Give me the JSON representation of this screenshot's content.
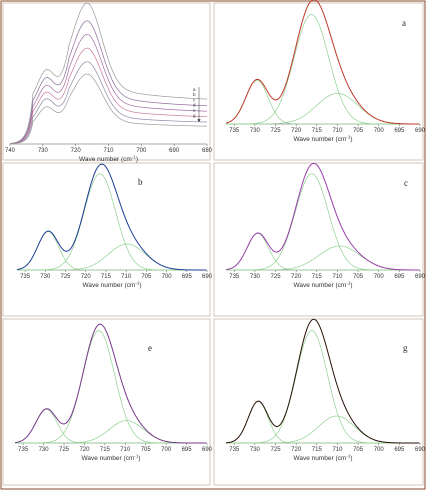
{
  "chart_data": [
    {
      "type": "line",
      "panel_label": "",
      "xlabel": "Wave number (cm",
      "xlabel_sup": "-1",
      "xlabel_tail": ")",
      "ylabel": "",
      "xlim": [
        740,
        680
      ],
      "ylim": [
        0,
        1.05
      ],
      "x_ticks": [
        740,
        730,
        720,
        710,
        700,
        690,
        680
      ],
      "stack_labels": [
        "a",
        "b",
        "c",
        "d",
        "e",
        "g"
      ],
      "arrow": true,
      "peaks": [
        {
          "center": 729,
          "width": 2.5
        },
        {
          "center": 716.5,
          "width": 4.5
        }
      ],
      "series": [
        {
          "name": "a",
          "color": "#9a9a9a",
          "offset": 0.33,
          "heights": [
            0.23,
            0.62
          ],
          "decay": 0.09
        },
        {
          "name": "b",
          "color": "#8a6a9a",
          "offset": 0.28,
          "heights": [
            0.22,
            0.55
          ],
          "decay": 0.08
        },
        {
          "name": "c",
          "color": "#a06aa0",
          "offset": 0.24,
          "heights": [
            0.2,
            0.5
          ],
          "decay": 0.07
        },
        {
          "name": "d",
          "color": "#c77a9a",
          "offset": 0.2,
          "heights": [
            0.19,
            0.45
          ],
          "decay": 0.06
        },
        {
          "name": "e",
          "color": "#8a8aa6",
          "offset": 0.16,
          "heights": [
            0.18,
            0.4
          ],
          "decay": 0.05
        },
        {
          "name": "g",
          "color": "#9a9a9a",
          "offset": 0.13,
          "heights": [
            0.15,
            0.35
          ],
          "decay": 0.04
        }
      ]
    },
    {
      "type": "line",
      "panel_label": "a",
      "xlabel": "Wave number (cm",
      "xlabel_sup": "-1",
      "xlabel_tail": ")",
      "xlim": [
        737,
        690
      ],
      "ylim": [
        0,
        1.05
      ],
      "x_ticks": [
        735,
        730,
        725,
        720,
        715,
        710,
        705,
        700,
        695,
        690
      ],
      "fit_color": "#c0392b",
      "component_color": "#8fd18f",
      "components": [
        {
          "center": 729.5,
          "height": 0.4,
          "width": 2.7
        },
        {
          "center": 716.3,
          "height": 1.0,
          "width": 4.2
        },
        {
          "center": 710.0,
          "height": 0.28,
          "width": 5.0
        }
      ]
    },
    {
      "type": "line",
      "panel_label": "b",
      "xlabel": "Wave number (cm",
      "xlabel_sup": "-1",
      "xlabel_tail": ")",
      "xlim": [
        737,
        690
      ],
      "ylim": [
        0,
        1.05
      ],
      "x_ticks": [
        735,
        730,
        725,
        720,
        715,
        710,
        705,
        700,
        695,
        690
      ],
      "fit_color": "#1f3f99",
      "component_color": "#8fd18f",
      "components": [
        {
          "center": 729.3,
          "height": 0.4,
          "width": 2.6
        },
        {
          "center": 716.5,
          "height": 1.0,
          "width": 3.9
        },
        {
          "center": 709.8,
          "height": 0.27,
          "width": 4.6
        }
      ]
    },
    {
      "type": "line",
      "panel_label": "c",
      "xlabel": "Wave number (cm",
      "xlabel_sup": "-1",
      "xlabel_tail": ")",
      "xlim": [
        737,
        690
      ],
      "ylim": [
        0,
        1.05
      ],
      "x_ticks": [
        735,
        730,
        725,
        720,
        715,
        710,
        705,
        700,
        695,
        690
      ],
      "fit_color": "#9b3fae",
      "component_color": "#8fd18f",
      "components": [
        {
          "center": 729.3,
          "height": 0.38,
          "width": 2.6
        },
        {
          "center": 716.2,
          "height": 1.0,
          "width": 4.0
        },
        {
          "center": 709.5,
          "height": 0.25,
          "width": 5.0
        }
      ]
    },
    {
      "type": "line",
      "panel_label": "e",
      "xlabel": "Wave number (cm",
      "xlabel_sup": "-1",
      "xlabel_tail": ")",
      "xlim": [
        737,
        690
      ],
      "ylim": [
        0,
        1.05
      ],
      "x_ticks": [
        735,
        730,
        725,
        720,
        715,
        710,
        705,
        700,
        695,
        690
      ],
      "fit_color": "#7a3a8e",
      "component_color": "#8fd18f",
      "components": [
        {
          "center": 729.3,
          "height": 0.3,
          "width": 2.6
        },
        {
          "center": 716.5,
          "height": 1.0,
          "width": 3.9
        },
        {
          "center": 709.7,
          "height": 0.2,
          "width": 4.2
        }
      ]
    },
    {
      "type": "line",
      "panel_label": "g",
      "xlabel": "Wave number (cm",
      "xlabel_sup": "-1",
      "xlabel_tail": ")",
      "xlim": [
        737,
        690
      ],
      "ylim": [
        0,
        1.05
      ],
      "x_ticks": [
        735,
        730,
        725,
        720,
        715,
        710,
        705,
        700,
        695,
        690
      ],
      "fit_color": "#2a1208",
      "component_color": "#8fd18f",
      "components": [
        {
          "center": 729.2,
          "height": 0.37,
          "width": 2.4
        },
        {
          "center": 716.2,
          "height": 1.0,
          "width": 3.8
        },
        {
          "center": 710.2,
          "height": 0.24,
          "width": 4.4
        }
      ]
    }
  ]
}
